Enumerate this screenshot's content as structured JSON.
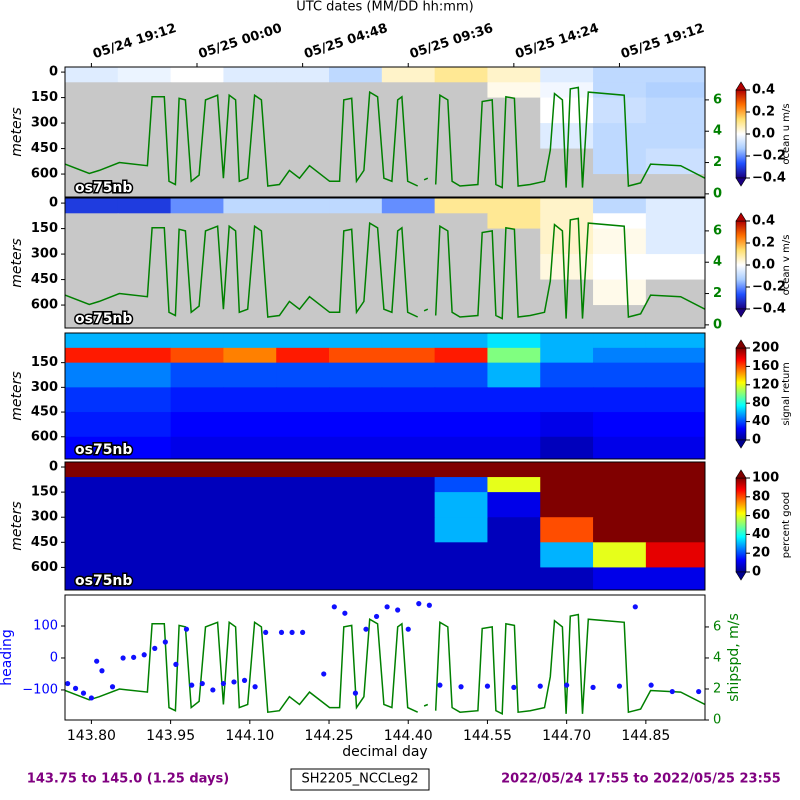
{
  "chart_data": [
    {
      "type": "heatmap",
      "xlim": [
        143.75,
        144.962
      ],
      "ylim": [
        735,
        -30
      ],
      "yticks": [
        0,
        150,
        300,
        450,
        600
      ],
      "ylabel": "meters",
      "x2label": "UTC dates (MM/DD hh:mm)",
      "x2ticks": [
        {
          "value": 143.8,
          "label": "05/24 19:12"
        },
        {
          "value": 144.0,
          "label": "05/25 00:00"
        },
        {
          "value": 144.2,
          "label": "05/25 04:48"
        },
        {
          "value": 144.4,
          "label": "05/25 09:36"
        },
        {
          "value": 144.6,
          "label": "05/25 14:24"
        },
        {
          "value": 144.8,
          "label": "05/25 19:12"
        }
      ],
      "x_edges": [
        143.75,
        143.85,
        143.95,
        144.05,
        144.15,
        144.25,
        144.35,
        144.45,
        144.55,
        144.65,
        144.75,
        144.85,
        144.962
      ],
      "y_edges": [
        -30,
        60,
        150,
        300,
        450,
        600,
        735
      ],
      "z": [
        [
          -0.05,
          -0.03,
          0,
          -0.05,
          -0.05,
          -0.1,
          0.05,
          0.1,
          0.05,
          -0.05,
          -0.1,
          -0.1
        ],
        [
          null,
          null,
          null,
          null,
          null,
          null,
          null,
          null,
          0.02,
          -0.02,
          -0.1,
          -0.12
        ],
        [
          null,
          null,
          null,
          null,
          null,
          null,
          null,
          null,
          null,
          0,
          -0.08,
          -0.1
        ],
        [
          null,
          null,
          null,
          null,
          null,
          null,
          null,
          null,
          null,
          -0.05,
          -0.1,
          -0.1
        ],
        [
          null,
          null,
          null,
          null,
          null,
          null,
          null,
          null,
          null,
          null,
          -0.1,
          -0.08
        ],
        [
          null,
          null,
          null,
          null,
          null,
          null,
          null,
          null,
          null,
          null,
          null,
          null
        ]
      ],
      "nodata_color": "#c8c8c8",
      "cmap": [
        "#1a0080",
        "#2050ff",
        "#a8ccff",
        "#ffffff",
        "#ffe070",
        "#ff7000",
        "#b00000"
      ],
      "clim": [
        -0.4,
        0.4
      ],
      "cticks": [
        0.4,
        0.2,
        {
          "value": 0,
          "label": "0.0"
        },
        {
          "value": -0.2,
          "label": "−0.2"
        },
        {
          "value": -0.4,
          "label": "−0.4"
        }
      ],
      "clabel": "ocean u m/s",
      "label": "os75nb",
      "y2lim": [
        -0.2,
        8.1
      ],
      "y2ticks": [
        0,
        2,
        4,
        6
      ],
      "y2_color": "#008000"
    },
    {
      "type": "heatmap",
      "xlim": [
        143.75,
        144.962
      ],
      "ylim": [
        735,
        -30
      ],
      "yticks": [
        0,
        150,
        300,
        450,
        600
      ],
      "ylabel": "meters",
      "x_edges": [
        143.75,
        143.85,
        143.95,
        144.05,
        144.15,
        144.25,
        144.35,
        144.45,
        144.55,
        144.65,
        144.75,
        144.85,
        144.962
      ],
      "y_edges": [
        -30,
        60,
        150,
        300,
        450,
        600,
        735
      ],
      "z": [
        [
          -0.3,
          -0.3,
          -0.2,
          -0.1,
          -0.1,
          -0.1,
          -0.2,
          0.1,
          0.1,
          0.05,
          -0.1,
          -0.05
        ],
        [
          null,
          null,
          null,
          null,
          null,
          null,
          null,
          null,
          0.1,
          0.05,
          0,
          -0.05
        ],
        [
          null,
          null,
          null,
          null,
          null,
          null,
          null,
          null,
          null,
          0.05,
          0.02,
          -0.05
        ],
        [
          null,
          null,
          null,
          null,
          null,
          null,
          null,
          null,
          null,
          0.03,
          0,
          0
        ],
        [
          null,
          null,
          null,
          null,
          null,
          null,
          null,
          null,
          null,
          null,
          0.02,
          null
        ],
        [
          null,
          null,
          null,
          null,
          null,
          null,
          null,
          null,
          null,
          null,
          null,
          null
        ]
      ],
      "nodata_color": "#c8c8c8",
      "cmap": [
        "#1a0080",
        "#2050ff",
        "#a8ccff",
        "#ffffff",
        "#ffe070",
        "#ff7000",
        "#b00000"
      ],
      "clim": [
        -0.4,
        0.4
      ],
      "cticks": [
        0.4,
        0.2,
        {
          "value": 0,
          "label": "0.0"
        },
        {
          "value": -0.2,
          "label": "−0.2"
        },
        {
          "value": -0.4,
          "label": "−0.4"
        }
      ],
      "clabel": "ocean v m/s",
      "label": "os75nb",
      "y2lim": [
        -0.2,
        8.1
      ],
      "y2ticks": [
        0,
        2,
        4,
        6
      ],
      "y2_color": "#008000"
    },
    {
      "type": "heatmap",
      "xlim": [
        143.75,
        144.962
      ],
      "ylim": [
        735,
        -30
      ],
      "yticks": [
        150,
        300,
        450,
        600
      ],
      "ylabel": "meters",
      "x_edges": [
        143.75,
        143.85,
        143.95,
        144.05,
        144.15,
        144.25,
        144.35,
        144.45,
        144.55,
        144.65,
        144.75,
        144.85,
        144.962
      ],
      "y_edges": [
        -30,
        60,
        150,
        300,
        450,
        600,
        735
      ],
      "z": [
        [
          60,
          60,
          60,
          60,
          60,
          60,
          60,
          60,
          70,
          60,
          60,
          60
        ],
        [
          170,
          170,
          160,
          150,
          170,
          160,
          160,
          170,
          100,
          60,
          50,
          50
        ],
        [
          50,
          50,
          40,
          40,
          40,
          40,
          40,
          40,
          60,
          40,
          40,
          40
        ],
        [
          35,
          35,
          30,
          30,
          30,
          30,
          30,
          30,
          30,
          30,
          30,
          30
        ],
        [
          30,
          30,
          25,
          25,
          25,
          25,
          25,
          25,
          25,
          20,
          25,
          25
        ],
        [
          25,
          25,
          20,
          20,
          20,
          20,
          20,
          20,
          20,
          10,
          20,
          20
        ]
      ],
      "nodata_color": "#c8c8c8",
      "cmap": [
        "#00008f",
        "#0000ff",
        "#0080ff",
        "#00ffff",
        "#80ff80",
        "#ffff00",
        "#ff8000",
        "#ff0000",
        "#800000"
      ],
      "clim": [
        0,
        200
      ],
      "cticks": [
        0,
        40,
        80,
        120,
        160,
        200
      ],
      "clabel": "signal return",
      "label": "os75nb"
    },
    {
      "type": "heatmap",
      "xlim": [
        143.75,
        144.962
      ],
      "ylim": [
        735,
        -30
      ],
      "yticks": [
        0,
        150,
        300,
        450,
        600
      ],
      "ylabel": "meters",
      "x_edges": [
        143.75,
        143.85,
        143.95,
        144.05,
        144.15,
        144.25,
        144.35,
        144.45,
        144.55,
        144.65,
        144.75,
        144.85,
        144.962
      ],
      "y_edges": [
        -30,
        60,
        150,
        300,
        450,
        600,
        735
      ],
      "z": [
        [
          100,
          100,
          100,
          100,
          100,
          100,
          100,
          100,
          100,
          100,
          100,
          100
        ],
        [
          5,
          5,
          5,
          5,
          5,
          5,
          5,
          20,
          60,
          100,
          100,
          100
        ],
        [
          5,
          5,
          5,
          5,
          5,
          5,
          5,
          30,
          10,
          100,
          100,
          100
        ],
        [
          5,
          5,
          5,
          5,
          5,
          5,
          5,
          30,
          5,
          80,
          100,
          100
        ],
        [
          5,
          5,
          5,
          5,
          5,
          5,
          5,
          5,
          5,
          30,
          60,
          90
        ],
        [
          5,
          5,
          5,
          5,
          5,
          5,
          5,
          5,
          5,
          5,
          10,
          10
        ]
      ],
      "nodata_color": "#c8c8c8",
      "cmap": [
        "#00008f",
        "#0000ff",
        "#0080ff",
        "#00ffff",
        "#80ff80",
        "#ffff00",
        "#ff8000",
        "#ff0000",
        "#800000"
      ],
      "clim": [
        0,
        100
      ],
      "cticks": [
        0,
        20,
        40,
        60,
        80,
        100
      ],
      "clabel": "percent good",
      "label": "os75nb"
    },
    {
      "type": "scatter_line",
      "xlim": [
        143.75,
        144.962
      ],
      "ylim": [
        -194,
        197
      ],
      "yticks": [
        {
          "value": -100,
          "label": "−100"
        },
        0,
        100
      ],
      "ylabel": "heading",
      "y_color": "#0000ff",
      "y2lim": [
        0,
        8.06
      ],
      "y2ticks": [
        0,
        2,
        4,
        6
      ],
      "y2label": "shipspd, m/s",
      "y2_color": "#008000",
      "xlabel": "decimal day",
      "xticks": [
        {
          "value": 143.8,
          "label": "143.80"
        },
        143.95,
        {
          "value": 144.1,
          "label": "144.10"
        },
        144.25,
        {
          "value": 144.4,
          "label": "144.40"
        },
        144.55,
        {
          "value": 144.7,
          "label": "144.70"
        },
        144.85
      ],
      "series": [
        {
          "type": "scatter",
          "color": "#1010ff",
          "x": [
            143.755,
            143.77,
            143.785,
            143.8,
            143.81,
            143.82,
            143.84,
            143.86,
            143.88,
            143.9,
            143.92,
            143.94,
            143.96,
            143.98,
            143.99,
            144.01,
            144.03,
            144.05,
            144.07,
            144.09,
            144.11,
            144.13,
            144.16,
            144.18,
            144.2,
            144.24,
            144.26,
            144.28,
            144.3,
            144.32,
            144.34,
            144.36,
            144.38,
            144.4,
            144.42,
            144.44,
            144.46,
            144.5,
            144.55,
            144.6,
            144.65,
            144.7,
            144.75,
            144.8,
            144.83,
            144.86,
            144.9,
            144.95
          ],
          "values": [
            -80,
            -95,
            -110,
            -125,
            -10,
            -40,
            -90,
            0,
            2,
            10,
            30,
            50,
            -20,
            90,
            -85,
            -80,
            -100,
            -80,
            -75,
            -70,
            -90,
            80,
            80,
            80,
            80,
            -50,
            160,
            140,
            -110,
            90,
            130,
            160,
            150,
            90,
            170,
            165,
            -85,
            -90,
            -88,
            -92,
            -88,
            -85,
            -92,
            -88,
            160,
            -85,
            -105,
            -105
          ]
        },
        {
          "type": "line",
          "axis": "y2",
          "color": "#008000",
          "x": [
            143.75,
            143.796,
            143.815,
            143.853,
            143.906,
            143.915,
            143.938,
            143.947,
            143.959,
            143.966,
            143.978,
            143.989,
            144.004,
            144.016,
            144.039,
            144.05,
            144.061,
            144.073,
            144.08,
            144.096,
            144.109,
            144.122,
            144.134,
            144.156,
            144.175,
            144.194,
            144.213,
            144.251,
            144.27,
            144.278,
            144.293,
            144.302,
            144.316,
            144.327,
            144.342,
            144.354,
            144.369,
            144.38,
            144.388,
            144.399,
            144.418,
            144.424,
            144.43,
            144.437,
            144.445,
            144.452,
            144.46,
            144.475,
            144.483,
            144.498,
            144.532,
            144.54,
            144.559,
            144.566,
            144.578,
            144.585,
            144.601,
            144.608,
            144.631,
            144.658,
            144.669,
            144.677,
            144.692,
            144.699,
            144.707,
            144.722,
            144.73,
            144.741,
            144.809,
            144.817,
            144.84,
            144.859,
            144.916,
            144.962
          ],
          "values": [
            1.9,
            1.3,
            1.5,
            2.0,
            1.8,
            6.2,
            6.2,
            0.8,
            0.6,
            6.1,
            6.0,
            0.8,
            1.2,
            6.0,
            6.3,
            1.0,
            6.3,
            6.0,
            0.8,
            1.0,
            6.3,
            6.0,
            0.5,
            0.6,
            1.5,
            1.0,
            1.8,
            0.8,
            0.8,
            6.0,
            6.1,
            0.8,
            1.5,
            6.5,
            6.2,
            1.0,
            0.8,
            6.0,
            6.2,
            0.8,
            0.5,
            null,
            0.9,
            1.0,
            null,
            0.6,
            6.3,
            6.0,
            0.8,
            0.5,
            0.6,
            5.9,
            6.0,
            0.6,
            0.4,
            6.2,
            6.1,
            0.5,
            0.6,
            0.8,
            2.8,
            6.4,
            6.0,
            0.4,
            6.7,
            6.8,
            0.4,
            6.5,
            6.3,
            0.5,
            0.7,
            1.9,
            1.8,
            1.0
          ]
        }
      ]
    }
  ],
  "footer": {
    "left": "143.75 to 145.0 (1.25 days)",
    "center": "SH2205_NCCLeg2",
    "right": "2022/05/24 17:55 to 2022/05/25 23:55",
    "color": "#800080"
  }
}
